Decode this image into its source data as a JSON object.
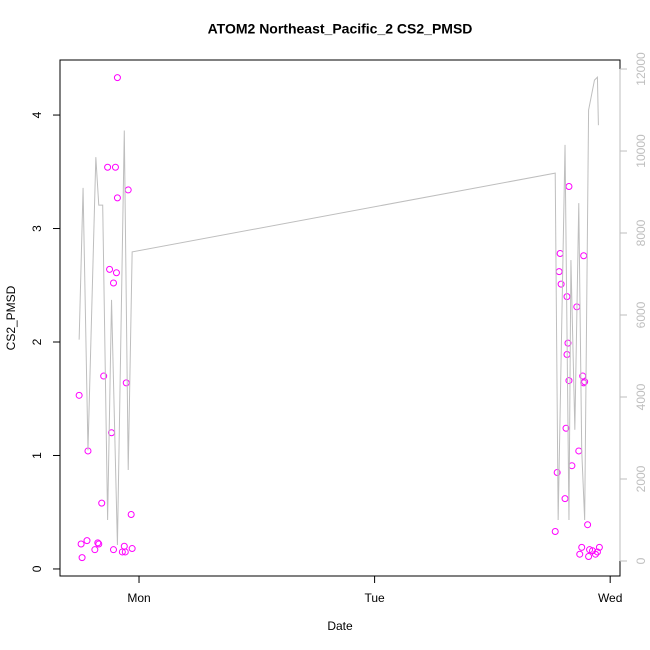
{
  "chart_data": {
    "type": "scatter",
    "title": "ATOM2 Northeast_Pacific_2 CS2_PMSD",
    "xlabel": "Date",
    "ylabel": "CS2_PMSD",
    "xlim": [
      15.95,
      73.0
    ],
    "xticks": [
      {
        "value": 24,
        "label": "Mon"
      },
      {
        "value": 48,
        "label": "Tue"
      },
      {
        "value": 72,
        "label": "Wed"
      }
    ],
    "ylim": [
      -0.062,
      4.485
    ],
    "yticks": [
      0,
      1,
      2,
      3,
      4
    ],
    "y2lim": [
      -366,
      12220
    ],
    "y2ticks": [
      0,
      2000,
      4000,
      6000,
      8000,
      10000,
      12000
    ],
    "y2color": "#bebebe",
    "series": [
      {
        "type": "scatter",
        "color": "#ff00ff",
        "x": [
          17.9,
          18.1,
          18.2,
          18.7,
          18.8,
          19.5,
          19.8,
          19.9,
          20.2,
          20.4,
          20.8,
          21.0,
          21.2,
          21.4,
          21.4,
          21.6,
          21.7,
          21.8,
          21.8,
          22.3,
          22.5,
          22.6,
          22.7,
          22.9,
          23.2,
          23.3,
          66.4,
          66.6,
          66.8,
          66.9,
          67.0,
          67.4,
          67.5,
          67.6,
          67.6,
          67.7,
          67.8,
          67.8,
          68.1,
          68.6,
          68.8,
          68.9,
          69.1,
          69.2,
          69.3,
          69.3,
          69.4,
          69.7,
          69.8,
          69.9,
          70.2,
          70.5,
          70.7,
          70.9
        ],
        "values": [
          1.53,
          0.22,
          0.1,
          0.25,
          1.04,
          0.17,
          0.23,
          0.22,
          0.58,
          1.7,
          3.54,
          2.64,
          1.2,
          0.17,
          2.52,
          3.54,
          2.61,
          4.33,
          3.27,
          0.15,
          0.2,
          0.15,
          1.64,
          3.34,
          0.48,
          0.18,
          0.33,
          0.85,
          2.62,
          2.78,
          2.51,
          0.62,
          1.24,
          2.4,
          1.89,
          1.99,
          3.37,
          1.66,
          0.91,
          2.31,
          1.04,
          0.13,
          0.19,
          1.7,
          2.76,
          1.64,
          1.65,
          0.39,
          0.11,
          0.17,
          0.16,
          0.13,
          0.15,
          0.19
        ]
      },
      {
        "type": "line",
        "color": "#bebebe",
        "axis": "y2",
        "x": [
          17.9,
          18.3,
          18.8,
          19.6,
          19.9,
          20.3,
          20.8,
          21.2,
          21.8,
          22.5,
          22.9,
          23.3,
          66.4,
          66.7,
          67.4,
          67.8,
          68.0,
          68.4,
          68.8,
          69.1,
          69.4,
          69.8,
          70.4,
          70.7,
          70.8
        ],
        "values": [
          5400,
          9100,
          2700,
          9850,
          8680,
          8680,
          1000,
          6370,
          390,
          10500,
          2220,
          7540,
          9460,
          1000,
          10150,
          1000,
          7340,
          3200,
          8730,
          2700,
          1000,
          11000,
          11730,
          11800,
          10630
        ]
      }
    ]
  }
}
